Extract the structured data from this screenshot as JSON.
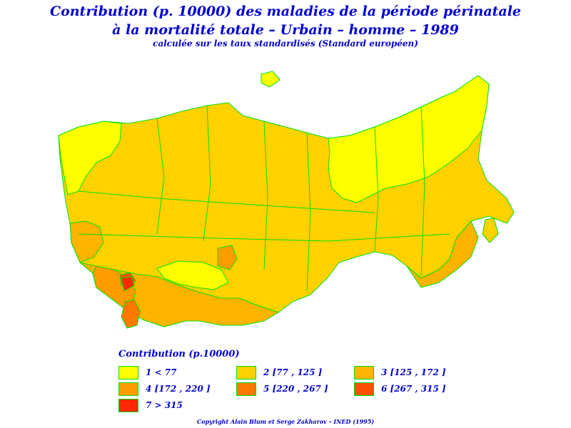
{
  "title_line1": "Contribution (p. 10000) des maladies de la période périnatale",
  "title_line2": "à la mortalité totale – Urbain – homme – 1989",
  "subtitle": "calculée sur les taux standardisés (Standard européen)",
  "legend": {
    "title": "Contribution (p.10000)",
    "items": [
      {
        "label": "1  <  77",
        "color": "#ffff00"
      },
      {
        "label": "2  [77 ,  125 ]",
        "color": "#ffd200"
      },
      {
        "label": "3  [125 ,  172 ]",
        "color": "#ffb400"
      },
      {
        "label": "4  [172 ,  220 ]",
        "color": "#ff9c00"
      },
      {
        "label": "5  [220 ,  267 ]",
        "color": "#ff7800"
      },
      {
        "label": "6  [267 ,  315 ]",
        "color": "#ff5000"
      },
      {
        "label": "7  >  315",
        "color": "#ff2800"
      }
    ]
  },
  "copyright": "Copyright Alain Blum et Serge Zakharov – INED (1995)",
  "colors": {
    "border": "#00e000",
    "text": "#0000d0"
  }
}
